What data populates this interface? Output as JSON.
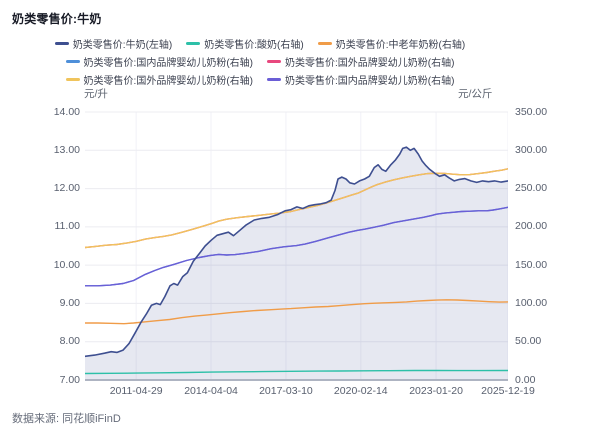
{
  "title": "奶类零售价:牛奶",
  "source": "数据来源: 同花顺iFinD",
  "axes": {
    "left_unit": "元/升",
    "right_unit": "元/公斤"
  },
  "legend_rows": [
    [
      0,
      1,
      2
    ],
    [
      3,
      4
    ],
    [
      5,
      6
    ]
  ],
  "chart_data": {
    "type": "line",
    "title": "奶类零售价:牛奶",
    "grid": true,
    "legend_position": "top",
    "left_axis": {
      "unit": "元/升",
      "range": [
        7,
        14
      ],
      "ticks": [
        "14.00",
        "13.00",
        "12.00",
        "11.00",
        "10.00",
        "9.00",
        "8.00",
        "7.00"
      ],
      "tick_values": [
        14,
        13,
        12,
        11,
        10,
        9,
        8,
        7
      ]
    },
    "right_axis": {
      "unit": "元/公斤",
      "range": [
        0,
        350
      ],
      "ticks": [
        "350.00",
        "300.00",
        "250.00",
        "200.00",
        "150.00",
        "100.00",
        "50.00",
        "0.00"
      ],
      "tick_values": [
        350,
        300,
        250,
        200,
        150,
        100,
        50,
        0
      ]
    },
    "x_axis": {
      "type": "time",
      "ticks": [
        {
          "label": "2011-04-29",
          "pct": 12.1
        },
        {
          "label": "2014-04-04",
          "pct": 29.8
        },
        {
          "label": "2017-03-10",
          "pct": 47.5
        },
        {
          "label": "2020-02-14",
          "pct": 65.2
        },
        {
          "label": "2023-01-20",
          "pct": 83.0
        },
        {
          "label": "2025-12-19",
          "pct": 100
        }
      ]
    },
    "colors": {
      "grid_h": "#ececf1",
      "grid_v": "#f1f1f7",
      "axis_line": "#aeb4c2",
      "area_fill": "rgba(90,100,160,0.15)"
    },
    "draw_order": [
      3,
      4,
      1,
      2,
      5,
      6,
      0
    ],
    "series": [
      {
        "name": "奶类零售价:牛奶(左轴)",
        "key": "milk",
        "axis": "left",
        "color": "#3e4f90",
        "area": true,
        "width": 1.6,
        "points": [
          [
            0,
            7.62
          ],
          [
            2.3,
            7.65
          ],
          [
            4.6,
            7.7
          ],
          [
            6.2,
            7.74
          ],
          [
            7.6,
            7.72
          ],
          [
            9,
            7.78
          ],
          [
            10.4,
            7.95
          ],
          [
            11.8,
            8.22
          ],
          [
            13.2,
            8.5
          ],
          [
            14.5,
            8.72
          ],
          [
            15.7,
            8.95
          ],
          [
            16.9,
            9.0
          ],
          [
            17.8,
            8.97
          ],
          [
            18.9,
            9.18
          ],
          [
            20.1,
            9.46
          ],
          [
            21,
            9.52
          ],
          [
            21.9,
            9.48
          ],
          [
            23.1,
            9.7
          ],
          [
            24.2,
            9.8
          ],
          [
            25.6,
            10.1
          ],
          [
            27,
            10.3
          ],
          [
            28.4,
            10.5
          ],
          [
            29.8,
            10.65
          ],
          [
            31.2,
            10.78
          ],
          [
            32.6,
            10.82
          ],
          [
            33.9,
            10.86
          ],
          [
            35.1,
            10.77
          ],
          [
            36.5,
            10.9
          ],
          [
            38.1,
            11.05
          ],
          [
            40,
            11.18
          ],
          [
            41.8,
            11.22
          ],
          [
            43.6,
            11.25
          ],
          [
            45.5,
            11.32
          ],
          [
            47.3,
            11.42
          ],
          [
            48.7,
            11.45
          ],
          [
            50.1,
            11.52
          ],
          [
            51.5,
            11.48
          ],
          [
            52.9,
            11.55
          ],
          [
            54.3,
            11.58
          ],
          [
            55.7,
            11.6
          ],
          [
            57,
            11.63
          ],
          [
            58.2,
            11.7
          ],
          [
            59.1,
            11.95
          ],
          [
            59.8,
            12.25
          ],
          [
            60.7,
            12.3
          ],
          [
            61.7,
            12.25
          ],
          [
            62.6,
            12.15
          ],
          [
            63.7,
            12.12
          ],
          [
            64.9,
            12.2
          ],
          [
            66.1,
            12.25
          ],
          [
            67.2,
            12.32
          ],
          [
            68.4,
            12.55
          ],
          [
            69.3,
            12.62
          ],
          [
            70.2,
            12.5
          ],
          [
            71.1,
            12.45
          ],
          [
            72.3,
            12.62
          ],
          [
            73.4,
            12.75
          ],
          [
            74.4,
            12.9
          ],
          [
            75.1,
            13.05
          ],
          [
            76,
            13.08
          ],
          [
            76.9,
            13.0
          ],
          [
            77.8,
            13.05
          ],
          [
            78.8,
            12.9
          ],
          [
            79.7,
            12.72
          ],
          [
            80.6,
            12.6
          ],
          [
            81.5,
            12.5
          ],
          [
            82.7,
            12.4
          ],
          [
            83.8,
            12.32
          ],
          [
            85,
            12.36
          ],
          [
            86.1,
            12.28
          ],
          [
            87.3,
            12.2
          ],
          [
            88.5,
            12.24
          ],
          [
            89.8,
            12.26
          ],
          [
            91.2,
            12.2
          ],
          [
            92.6,
            12.16
          ],
          [
            94,
            12.2
          ],
          [
            95.4,
            12.18
          ],
          [
            96.8,
            12.2
          ],
          [
            98.4,
            12.17
          ],
          [
            100,
            12.2
          ]
        ]
      },
      {
        "name": "奶类零售价:酸奶(右轴)",
        "key": "yogurt",
        "axis": "right",
        "color": "#2dc0a8",
        "width": 1.4,
        "points": [
          [
            0,
            8.5
          ],
          [
            6,
            8.7
          ],
          [
            12,
            9.0
          ],
          [
            18,
            9.4
          ],
          [
            24,
            9.8
          ],
          [
            30,
            10.3
          ],
          [
            36,
            10.7
          ],
          [
            42,
            11.0
          ],
          [
            48.7,
            11.3
          ],
          [
            55,
            11.6
          ],
          [
            60,
            11.8
          ],
          [
            66.1,
            12.0
          ],
          [
            72,
            12.2
          ],
          [
            78,
            12.35
          ],
          [
            83.1,
            12.4
          ],
          [
            88,
            12.3
          ],
          [
            93,
            12.25
          ],
          [
            100,
            12.35
          ]
        ]
      },
      {
        "name": "奶类零售价:中老年奶粉(右轴)",
        "key": "elderly-milk-powder",
        "axis": "right",
        "color": "#f09c48",
        "width": 1.4,
        "points": [
          [
            0,
            74.5
          ],
          [
            3,
            74.5
          ],
          [
            6,
            74
          ],
          [
            9.2,
            73.5
          ],
          [
            11.5,
            74.5
          ],
          [
            14.3,
            76
          ],
          [
            17,
            77.5
          ],
          [
            20,
            79
          ],
          [
            23,
            81.5
          ],
          [
            26,
            83.5
          ],
          [
            29,
            85
          ],
          [
            31.6,
            86.5
          ],
          [
            34.5,
            88
          ],
          [
            37.5,
            89.5
          ],
          [
            40.5,
            90.8
          ],
          [
            44,
            91.8
          ],
          [
            47,
            92.8
          ],
          [
            48.7,
            93.3
          ],
          [
            51.5,
            94.3
          ],
          [
            54.5,
            95.3
          ],
          [
            57.5,
            96
          ],
          [
            60,
            97
          ],
          [
            62.5,
            98.2
          ],
          [
            64.5,
            99
          ],
          [
            66.1,
            99.6
          ],
          [
            68.5,
            100.3
          ],
          [
            71,
            100.8
          ],
          [
            73.5,
            101.3
          ],
          [
            76,
            102
          ],
          [
            78.5,
            103
          ],
          [
            81,
            103.8
          ],
          [
            83.1,
            104.3
          ],
          [
            85.5,
            104.8
          ],
          [
            88,
            104.5
          ],
          [
            90.5,
            103.8
          ],
          [
            93,
            103
          ],
          [
            95.5,
            102.3
          ],
          [
            98,
            101.8
          ],
          [
            100,
            102
          ]
        ]
      },
      {
        "name": "奶类零售价:国内品牌婴幼儿奶粉(右轴)",
        "key": "domestic-infant-formula-blue",
        "axis": "right",
        "color": "#4e8fd9",
        "width": 1.4,
        "same_as": 6
      },
      {
        "name": "奶类零售价:国外品牌婴幼儿奶粉(右轴)",
        "key": "foreign-infant-formula-pink",
        "axis": "right",
        "color": "#e8487e",
        "width": 1.4,
        "same_as": 5
      },
      {
        "name": "奶类零售价:国外品牌婴幼儿奶粉(右轴)",
        "key": "foreign-infant-formula-yellow",
        "axis": "right",
        "color": "#f0c45c",
        "width": 1.4,
        "points": [
          [
            0,
            173
          ],
          [
            2.5,
            174.5
          ],
          [
            5,
            176
          ],
          [
            7.5,
            177
          ],
          [
            10,
            179
          ],
          [
            12,
            181
          ],
          [
            14.3,
            184
          ],
          [
            16.5,
            186
          ],
          [
            18.5,
            187.5
          ],
          [
            20.5,
            189.5
          ],
          [
            23,
            193
          ],
          [
            25.5,
            197
          ],
          [
            28,
            201
          ],
          [
            30,
            204.5
          ],
          [
            31.6,
            207.5
          ],
          [
            33.5,
            210
          ],
          [
            36,
            212
          ],
          [
            38.5,
            213.5
          ],
          [
            41,
            215
          ],
          [
            43.5,
            216.5
          ],
          [
            46,
            218
          ],
          [
            48.7,
            220
          ],
          [
            51,
            223
          ],
          [
            53,
            225.5
          ],
          [
            55,
            228
          ],
          [
            57,
            231
          ],
          [
            59,
            234.5
          ],
          [
            61,
            238
          ],
          [
            63,
            241.5
          ],
          [
            64.5,
            244
          ],
          [
            66.1,
            248
          ],
          [
            67.5,
            251.5
          ],
          [
            69,
            255
          ],
          [
            71,
            258.5
          ],
          [
            73,
            261.5
          ],
          [
            75,
            264
          ],
          [
            77,
            266
          ],
          [
            79,
            268
          ],
          [
            81,
            269.5
          ],
          [
            83.1,
            270
          ],
          [
            85,
            269.8
          ],
          [
            87,
            268.8
          ],
          [
            89,
            268
          ],
          [
            91,
            268.3
          ],
          [
            93,
            269.5
          ],
          [
            95,
            271
          ],
          [
            97,
            272.8
          ],
          [
            98.5,
            274
          ],
          [
            100,
            275.8
          ]
        ]
      },
      {
        "name": "奶类零售价:国内品牌婴幼儿奶粉(右轴)",
        "key": "domestic-infant-formula-purple",
        "axis": "right",
        "color": "#6b5ed6",
        "width": 1.4,
        "points": [
          [
            0,
            123
          ],
          [
            3,
            123
          ],
          [
            6,
            124
          ],
          [
            9,
            126
          ],
          [
            11.5,
            130
          ],
          [
            14.3,
            138
          ],
          [
            16.5,
            143
          ],
          [
            18.5,
            147
          ],
          [
            21,
            151
          ],
          [
            24,
            156
          ],
          [
            27,
            160
          ],
          [
            29.5,
            162.5
          ],
          [
            31.6,
            164
          ],
          [
            33.5,
            163.2
          ],
          [
            35.5,
            163.8
          ],
          [
            38,
            165.5
          ],
          [
            41,
            168
          ],
          [
            44,
            171.5
          ],
          [
            47,
            174
          ],
          [
            50,
            175.5
          ],
          [
            52,
            177.5
          ],
          [
            54.5,
            181
          ],
          [
            57.7,
            186
          ],
          [
            60,
            189.5
          ],
          [
            62.4,
            193
          ],
          [
            64.5,
            195.5
          ],
          [
            66.1,
            197
          ],
          [
            68,
            199
          ],
          [
            70.5,
            202
          ],
          [
            73,
            205.5
          ],
          [
            75.5,
            208
          ],
          [
            78,
            210.5
          ],
          [
            80,
            212.5
          ],
          [
            82,
            215
          ],
          [
            83.1,
            216.5
          ],
          [
            85,
            218
          ],
          [
            87,
            219
          ],
          [
            89,
            220
          ],
          [
            91,
            220.5
          ],
          [
            93,
            221
          ],
          [
            95,
            221
          ],
          [
            96.5,
            222
          ],
          [
            98,
            223.5
          ],
          [
            100,
            225.5
          ]
        ]
      }
    ]
  }
}
